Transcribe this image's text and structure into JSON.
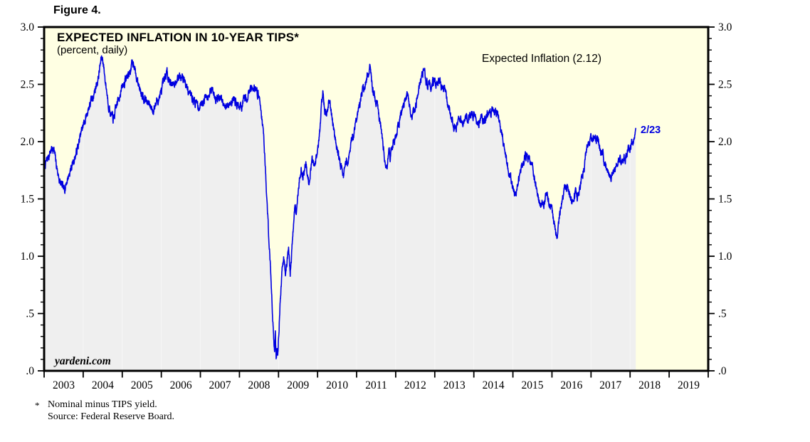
{
  "figure_label": "Figure 4.",
  "chart": {
    "title": "EXPECTED INFLATION IN 10-YEAR TIPS*",
    "subtitle": "(percent, daily)",
    "legend": "Expected Inflation (2.12)",
    "end_label": "2/23",
    "watermark": "yardeni.com",
    "footnote_marker": "*",
    "footnote_line1": "Nominal minus TIPS yield.",
    "footnote_line2": "Source: Federal Reserve Board.",
    "colors": {
      "plot_background": "#FFFFE3",
      "area_fill": "#EFEFEF",
      "line": "#0000E0",
      "axis": "#000000"
    }
  },
  "chart_data": {
    "type": "area",
    "title": "EXPECTED INFLATION IN 10-YEAR TIPS*",
    "series_name": "Expected Inflation",
    "last_value": 2.12,
    "last_date_label": "2/23",
    "x_range": [
      2003,
      2020
    ],
    "ylim": [
      0.0,
      3.0
    ],
    "grid": false,
    "legend_position": "top-right",
    "y_major_labels": [
      "3.0",
      "2.5",
      "2.0",
      "1.5",
      "1.0",
      ".5",
      ".0"
    ],
    "y_major_values": [
      3.0,
      2.5,
      2.0,
      1.5,
      1.0,
      0.5,
      0.0
    ],
    "y_minor_step": 0.1,
    "x_year_labels": [
      "2003",
      "2004",
      "2005",
      "2006",
      "2007",
      "2008",
      "2009",
      "2010",
      "2011",
      "2012",
      "2013",
      "2014",
      "2015",
      "2016",
      "2017",
      "2018",
      "2019"
    ],
    "points_per_year": 260,
    "daily_noise": {
      "seed": 7,
      "amplitude": 0.055,
      "smoothing": 0.75
    },
    "anchors": [
      [
        2003.0,
        1.78
      ],
      [
        2003.08,
        1.84
      ],
      [
        2003.16,
        1.92
      ],
      [
        2003.24,
        1.95
      ],
      [
        2003.32,
        1.78
      ],
      [
        2003.4,
        1.65
      ],
      [
        2003.5,
        1.57
      ],
      [
        2003.58,
        1.66
      ],
      [
        2003.66,
        1.74
      ],
      [
        2003.74,
        1.82
      ],
      [
        2003.82,
        1.9
      ],
      [
        2003.9,
        2.0
      ],
      [
        2003.98,
        2.12
      ],
      [
        2004.06,
        2.2
      ],
      [
        2004.14,
        2.3
      ],
      [
        2004.22,
        2.36
      ],
      [
        2004.3,
        2.45
      ],
      [
        2004.38,
        2.55
      ],
      [
        2004.46,
        2.72
      ],
      [
        2004.5,
        2.73
      ],
      [
        2004.56,
        2.55
      ],
      [
        2004.64,
        2.35
      ],
      [
        2004.72,
        2.22
      ],
      [
        2004.78,
        2.19
      ],
      [
        2004.86,
        2.32
      ],
      [
        2004.94,
        2.42
      ],
      [
        2005.02,
        2.49
      ],
      [
        2005.1,
        2.55
      ],
      [
        2005.18,
        2.6
      ],
      [
        2005.26,
        2.68
      ],
      [
        2005.3,
        2.7
      ],
      [
        2005.36,
        2.55
      ],
      [
        2005.44,
        2.48
      ],
      [
        2005.52,
        2.42
      ],
      [
        2005.6,
        2.37
      ],
      [
        2005.7,
        2.31
      ],
      [
        2005.8,
        2.28
      ],
      [
        2005.9,
        2.36
      ],
      [
        2005.98,
        2.41
      ],
      [
        2006.06,
        2.5
      ],
      [
        2006.14,
        2.6
      ],
      [
        2006.22,
        2.54
      ],
      [
        2006.3,
        2.49
      ],
      [
        2006.38,
        2.53
      ],
      [
        2006.46,
        2.58
      ],
      [
        2006.54,
        2.6
      ],
      [
        2006.62,
        2.51
      ],
      [
        2006.7,
        2.43
      ],
      [
        2006.8,
        2.38
      ],
      [
        2006.9,
        2.33
      ],
      [
        2006.98,
        2.3
      ],
      [
        2007.06,
        2.36
      ],
      [
        2007.14,
        2.4
      ],
      [
        2007.22,
        2.43
      ],
      [
        2007.3,
        2.45
      ],
      [
        2007.38,
        2.4
      ],
      [
        2007.46,
        2.38
      ],
      [
        2007.54,
        2.36
      ],
      [
        2007.62,
        2.28
      ],
      [
        2007.7,
        2.32
      ],
      [
        2007.78,
        2.35
      ],
      [
        2007.86,
        2.38
      ],
      [
        2007.94,
        2.33
      ],
      [
        2008.02,
        2.3
      ],
      [
        2008.1,
        2.33
      ],
      [
        2008.18,
        2.38
      ],
      [
        2008.26,
        2.44
      ],
      [
        2008.34,
        2.49
      ],
      [
        2008.42,
        2.45
      ],
      [
        2008.48,
        2.42
      ],
      [
        2008.54,
        2.33
      ],
      [
        2008.58,
        2.2
      ],
      [
        2008.62,
        2.05
      ],
      [
        2008.66,
        1.8
      ],
      [
        2008.7,
        1.5
      ],
      [
        2008.74,
        1.25
      ],
      [
        2008.78,
        1.0
      ],
      [
        2008.82,
        0.7
      ],
      [
        2008.86,
        0.42
      ],
      [
        2008.9,
        0.15
      ],
      [
        2008.92,
        0.32
      ],
      [
        2008.94,
        0.08
      ],
      [
        2008.96,
        0.22
      ],
      [
        2008.98,
        0.1
      ],
      [
        2009.02,
        0.45
      ],
      [
        2009.06,
        0.7
      ],
      [
        2009.1,
        0.9
      ],
      [
        2009.14,
        1.0
      ],
      [
        2009.18,
        0.88
      ],
      [
        2009.22,
        0.95
      ],
      [
        2009.26,
        1.06
      ],
      [
        2009.3,
        0.84
      ],
      [
        2009.34,
        1.05
      ],
      [
        2009.38,
        1.25
      ],
      [
        2009.42,
        1.45
      ],
      [
        2009.46,
        1.35
      ],
      [
        2009.5,
        1.55
      ],
      [
        2009.54,
        1.7
      ],
      [
        2009.58,
        1.78
      ],
      [
        2009.62,
        1.68
      ],
      [
        2009.66,
        1.75
      ],
      [
        2009.7,
        1.82
      ],
      [
        2009.74,
        1.72
      ],
      [
        2009.78,
        1.65
      ],
      [
        2009.82,
        1.75
      ],
      [
        2009.86,
        1.82
      ],
      [
        2009.9,
        1.8
      ],
      [
        2009.94,
        1.85
      ],
      [
        2009.98,
        1.9
      ],
      [
        2010.02,
        1.95
      ],
      [
        2010.06,
        2.1
      ],
      [
        2010.1,
        2.3
      ],
      [
        2010.14,
        2.41
      ],
      [
        2010.18,
        2.3
      ],
      [
        2010.22,
        2.22
      ],
      [
        2010.26,
        2.3
      ],
      [
        2010.3,
        2.35
      ],
      [
        2010.34,
        2.28
      ],
      [
        2010.38,
        2.2
      ],
      [
        2010.42,
        2.1
      ],
      [
        2010.46,
        2.02
      ],
      [
        2010.5,
        1.95
      ],
      [
        2010.54,
        1.88
      ],
      [
        2010.58,
        1.8
      ],
      [
        2010.62,
        1.74
      ],
      [
        2010.66,
        1.7
      ],
      [
        2010.7,
        1.78
      ],
      [
        2010.74,
        1.85
      ],
      [
        2010.78,
        1.8
      ],
      [
        2010.82,
        1.9
      ],
      [
        2010.86,
        1.98
      ],
      [
        2010.9,
        2.05
      ],
      [
        2010.94,
        2.12
      ],
      [
        2010.98,
        2.18
      ],
      [
        2011.02,
        2.25
      ],
      [
        2011.06,
        2.3
      ],
      [
        2011.1,
        2.36
      ],
      [
        2011.14,
        2.42
      ],
      [
        2011.18,
        2.46
      ],
      [
        2011.22,
        2.5
      ],
      [
        2011.26,
        2.55
      ],
      [
        2011.3,
        2.6
      ],
      [
        2011.34,
        2.63
      ],
      [
        2011.38,
        2.52
      ],
      [
        2011.42,
        2.45
      ],
      [
        2011.46,
        2.4
      ],
      [
        2011.5,
        2.36
      ],
      [
        2011.54,
        2.3
      ],
      [
        2011.58,
        2.22
      ],
      [
        2011.62,
        2.12
      ],
      [
        2011.66,
        2.02
      ],
      [
        2011.7,
        1.92
      ],
      [
        2011.74,
        1.8
      ],
      [
        2011.78,
        1.78
      ],
      [
        2011.82,
        1.95
      ],
      [
        2011.86,
        1.88
      ],
      [
        2011.9,
        1.95
      ],
      [
        2011.94,
        2.0
      ],
      [
        2011.98,
        2.04
      ],
      [
        2012.02,
        2.08
      ],
      [
        2012.06,
        2.12
      ],
      [
        2012.1,
        2.18
      ],
      [
        2012.14,
        2.24
      ],
      [
        2012.18,
        2.3
      ],
      [
        2012.22,
        2.35
      ],
      [
        2012.26,
        2.38
      ],
      [
        2012.3,
        2.4
      ],
      [
        2012.34,
        2.32
      ],
      [
        2012.38,
        2.26
      ],
      [
        2012.42,
        2.21
      ],
      [
        2012.46,
        2.24
      ],
      [
        2012.5,
        2.3
      ],
      [
        2012.54,
        2.38
      ],
      [
        2012.58,
        2.46
      ],
      [
        2012.62,
        2.52
      ],
      [
        2012.66,
        2.56
      ],
      [
        2012.7,
        2.6
      ],
      [
        2012.74,
        2.61
      ],
      [
        2012.78,
        2.54
      ],
      [
        2012.82,
        2.49
      ],
      [
        2012.86,
        2.52
      ],
      [
        2012.9,
        2.47
      ],
      [
        2012.94,
        2.5
      ],
      [
        2012.98,
        2.52
      ],
      [
        2013.02,
        2.5
      ],
      [
        2013.06,
        2.52
      ],
      [
        2013.1,
        2.55
      ],
      [
        2013.14,
        2.53
      ],
      [
        2013.18,
        2.48
      ],
      [
        2013.22,
        2.5
      ],
      [
        2013.26,
        2.45
      ],
      [
        2013.3,
        2.38
      ],
      [
        2013.34,
        2.32
      ],
      [
        2013.38,
        2.28
      ],
      [
        2013.42,
        2.22
      ],
      [
        2013.46,
        2.18
      ],
      [
        2013.5,
        2.14
      ],
      [
        2013.54,
        2.12
      ],
      [
        2013.58,
        2.12
      ],
      [
        2013.62,
        2.18
      ],
      [
        2013.66,
        2.2
      ],
      [
        2013.7,
        2.16
      ],
      [
        2013.74,
        2.18
      ],
      [
        2013.78,
        2.22
      ],
      [
        2013.82,
        2.2
      ],
      [
        2013.86,
        2.18
      ],
      [
        2013.9,
        2.2
      ],
      [
        2013.94,
        2.24
      ],
      [
        2013.98,
        2.22
      ],
      [
        2014.02,
        2.24
      ],
      [
        2014.06,
        2.2
      ],
      [
        2014.1,
        2.16
      ],
      [
        2014.14,
        2.18
      ],
      [
        2014.18,
        2.21
      ],
      [
        2014.22,
        2.18
      ],
      [
        2014.26,
        2.15
      ],
      [
        2014.3,
        2.18
      ],
      [
        2014.34,
        2.22
      ],
      [
        2014.38,
        2.25
      ],
      [
        2014.42,
        2.22
      ],
      [
        2014.46,
        2.25
      ],
      [
        2014.5,
        2.27
      ],
      [
        2014.54,
        2.24
      ],
      [
        2014.58,
        2.26
      ],
      [
        2014.62,
        2.22
      ],
      [
        2014.66,
        2.15
      ],
      [
        2014.7,
        2.08
      ],
      [
        2014.74,
        2.0
      ],
      [
        2014.78,
        1.95
      ],
      [
        2014.82,
        1.88
      ],
      [
        2014.86,
        1.8
      ],
      [
        2014.9,
        1.72
      ],
      [
        2014.94,
        1.68
      ],
      [
        2014.98,
        1.64
      ],
      [
        2015.02,
        1.58
      ],
      [
        2015.06,
        1.53
      ],
      [
        2015.1,
        1.56
      ],
      [
        2015.14,
        1.65
      ],
      [
        2015.18,
        1.72
      ],
      [
        2015.22,
        1.76
      ],
      [
        2015.26,
        1.8
      ],
      [
        2015.3,
        1.84
      ],
      [
        2015.34,
        1.88
      ],
      [
        2015.38,
        1.84
      ],
      [
        2015.42,
        1.87
      ],
      [
        2015.46,
        1.82
      ],
      [
        2015.5,
        1.76
      ],
      [
        2015.54,
        1.7
      ],
      [
        2015.58,
        1.64
      ],
      [
        2015.62,
        1.57
      ],
      [
        2015.66,
        1.5
      ],
      [
        2015.7,
        1.45
      ],
      [
        2015.74,
        1.48
      ],
      [
        2015.78,
        1.42
      ],
      [
        2015.82,
        1.48
      ],
      [
        2015.86,
        1.54
      ],
      [
        2015.9,
        1.5
      ],
      [
        2015.94,
        1.46
      ],
      [
        2015.98,
        1.44
      ],
      [
        2016.02,
        1.36
      ],
      [
        2016.06,
        1.28
      ],
      [
        2016.1,
        1.2
      ],
      [
        2016.13,
        1.18
      ],
      [
        2016.17,
        1.28
      ],
      [
        2016.21,
        1.38
      ],
      [
        2016.25,
        1.48
      ],
      [
        2016.29,
        1.55
      ],
      [
        2016.33,
        1.6
      ],
      [
        2016.37,
        1.62
      ],
      [
        2016.41,
        1.58
      ],
      [
        2016.45,
        1.54
      ],
      [
        2016.49,
        1.5
      ],
      [
        2016.53,
        1.47
      ],
      [
        2016.57,
        1.52
      ],
      [
        2016.61,
        1.55
      ],
      [
        2016.65,
        1.52
      ],
      [
        2016.69,
        1.56
      ],
      [
        2016.73,
        1.62
      ],
      [
        2016.77,
        1.68
      ],
      [
        2016.81,
        1.76
      ],
      [
        2016.85,
        1.84
      ],
      [
        2016.89,
        1.92
      ],
      [
        2016.93,
        1.96
      ],
      [
        2016.97,
        1.99
      ],
      [
        2017.01,
        2.02
      ],
      [
        2017.05,
        2.05
      ],
      [
        2017.09,
        2.02
      ],
      [
        2017.13,
        1.99
      ],
      [
        2017.17,
        2.01
      ],
      [
        2017.21,
        1.97
      ],
      [
        2017.25,
        1.93
      ],
      [
        2017.29,
        1.89
      ],
      [
        2017.33,
        1.85
      ],
      [
        2017.37,
        1.8
      ],
      [
        2017.41,
        1.76
      ],
      [
        2017.45,
        1.72
      ],
      [
        2017.49,
        1.68
      ],
      [
        2017.53,
        1.67
      ],
      [
        2017.57,
        1.72
      ],
      [
        2017.61,
        1.76
      ],
      [
        2017.65,
        1.8
      ],
      [
        2017.69,
        1.84
      ],
      [
        2017.73,
        1.86
      ],
      [
        2017.77,
        1.82
      ],
      [
        2017.81,
        1.79
      ],
      [
        2017.85,
        1.83
      ],
      [
        2017.89,
        1.87
      ],
      [
        2017.93,
        1.9
      ],
      [
        2017.97,
        1.94
      ],
      [
        2018.01,
        1.99
      ],
      [
        2018.05,
        2.03
      ],
      [
        2018.09,
        2.02
      ],
      [
        2018.12,
        2.06
      ],
      [
        2018.146,
        2.12
      ]
    ]
  }
}
